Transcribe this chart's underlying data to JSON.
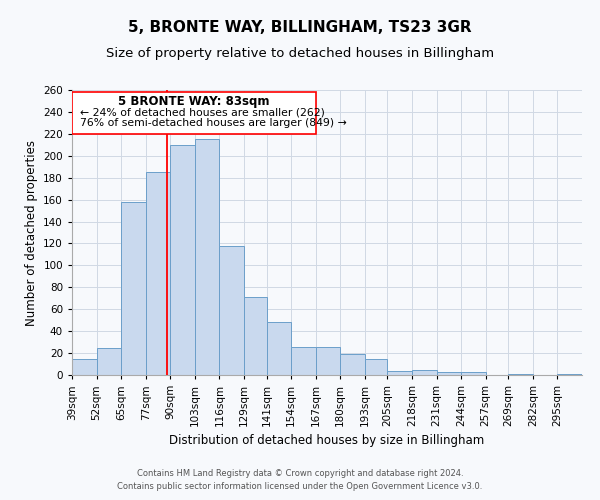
{
  "title": "5, BRONTE WAY, BILLINGHAM, TS23 3GR",
  "subtitle": "Size of property relative to detached houses in Billingham",
  "xlabel": "Distribution of detached houses by size in Billingham",
  "ylabel": "Number of detached properties",
  "bin_labels": [
    "39sqm",
    "52sqm",
    "65sqm",
    "77sqm",
    "90sqm",
    "103sqm",
    "116sqm",
    "129sqm",
    "141sqm",
    "154sqm",
    "167sqm",
    "180sqm",
    "193sqm",
    "205sqm",
    "218sqm",
    "231sqm",
    "244sqm",
    "257sqm",
    "269sqm",
    "282sqm",
    "295sqm"
  ],
  "bar_heights": [
    15,
    25,
    158,
    185,
    210,
    215,
    118,
    71,
    48,
    26,
    26,
    19,
    15,
    4,
    5,
    3,
    3,
    0,
    1,
    0,
    1
  ],
  "bar_color": "#c9d9ee",
  "bar_edge_color": "#6b9fca",
  "property_line_x": 83,
  "bin_edges": [
    32.5,
    45.5,
    58.5,
    71.5,
    84.5,
    97.5,
    110.5,
    123.5,
    135.5,
    148.5,
    161.5,
    174.5,
    187.5,
    199.5,
    212.5,
    225.5,
    238.5,
    251.5,
    263.5,
    276.5,
    289.5,
    302.5
  ],
  "ylim": [
    0,
    260
  ],
  "yticks": [
    0,
    20,
    40,
    60,
    80,
    100,
    120,
    140,
    160,
    180,
    200,
    220,
    240,
    260
  ],
  "annotation_title": "5 BRONTE WAY: 83sqm",
  "annotation_line1": "← 24% of detached houses are smaller (262)",
  "annotation_line2": "76% of semi-detached houses are larger (849) →",
  "footer1": "Contains HM Land Registry data © Crown copyright and database right 2024.",
  "footer2": "Contains public sector information licensed under the Open Government Licence v3.0.",
  "background_color": "#f7f9fc",
  "grid_color": "#d0d8e4",
  "title_fontsize": 11,
  "subtitle_fontsize": 9.5,
  "axis_label_fontsize": 8.5,
  "tick_fontsize": 7.5,
  "footer_fontsize": 6
}
